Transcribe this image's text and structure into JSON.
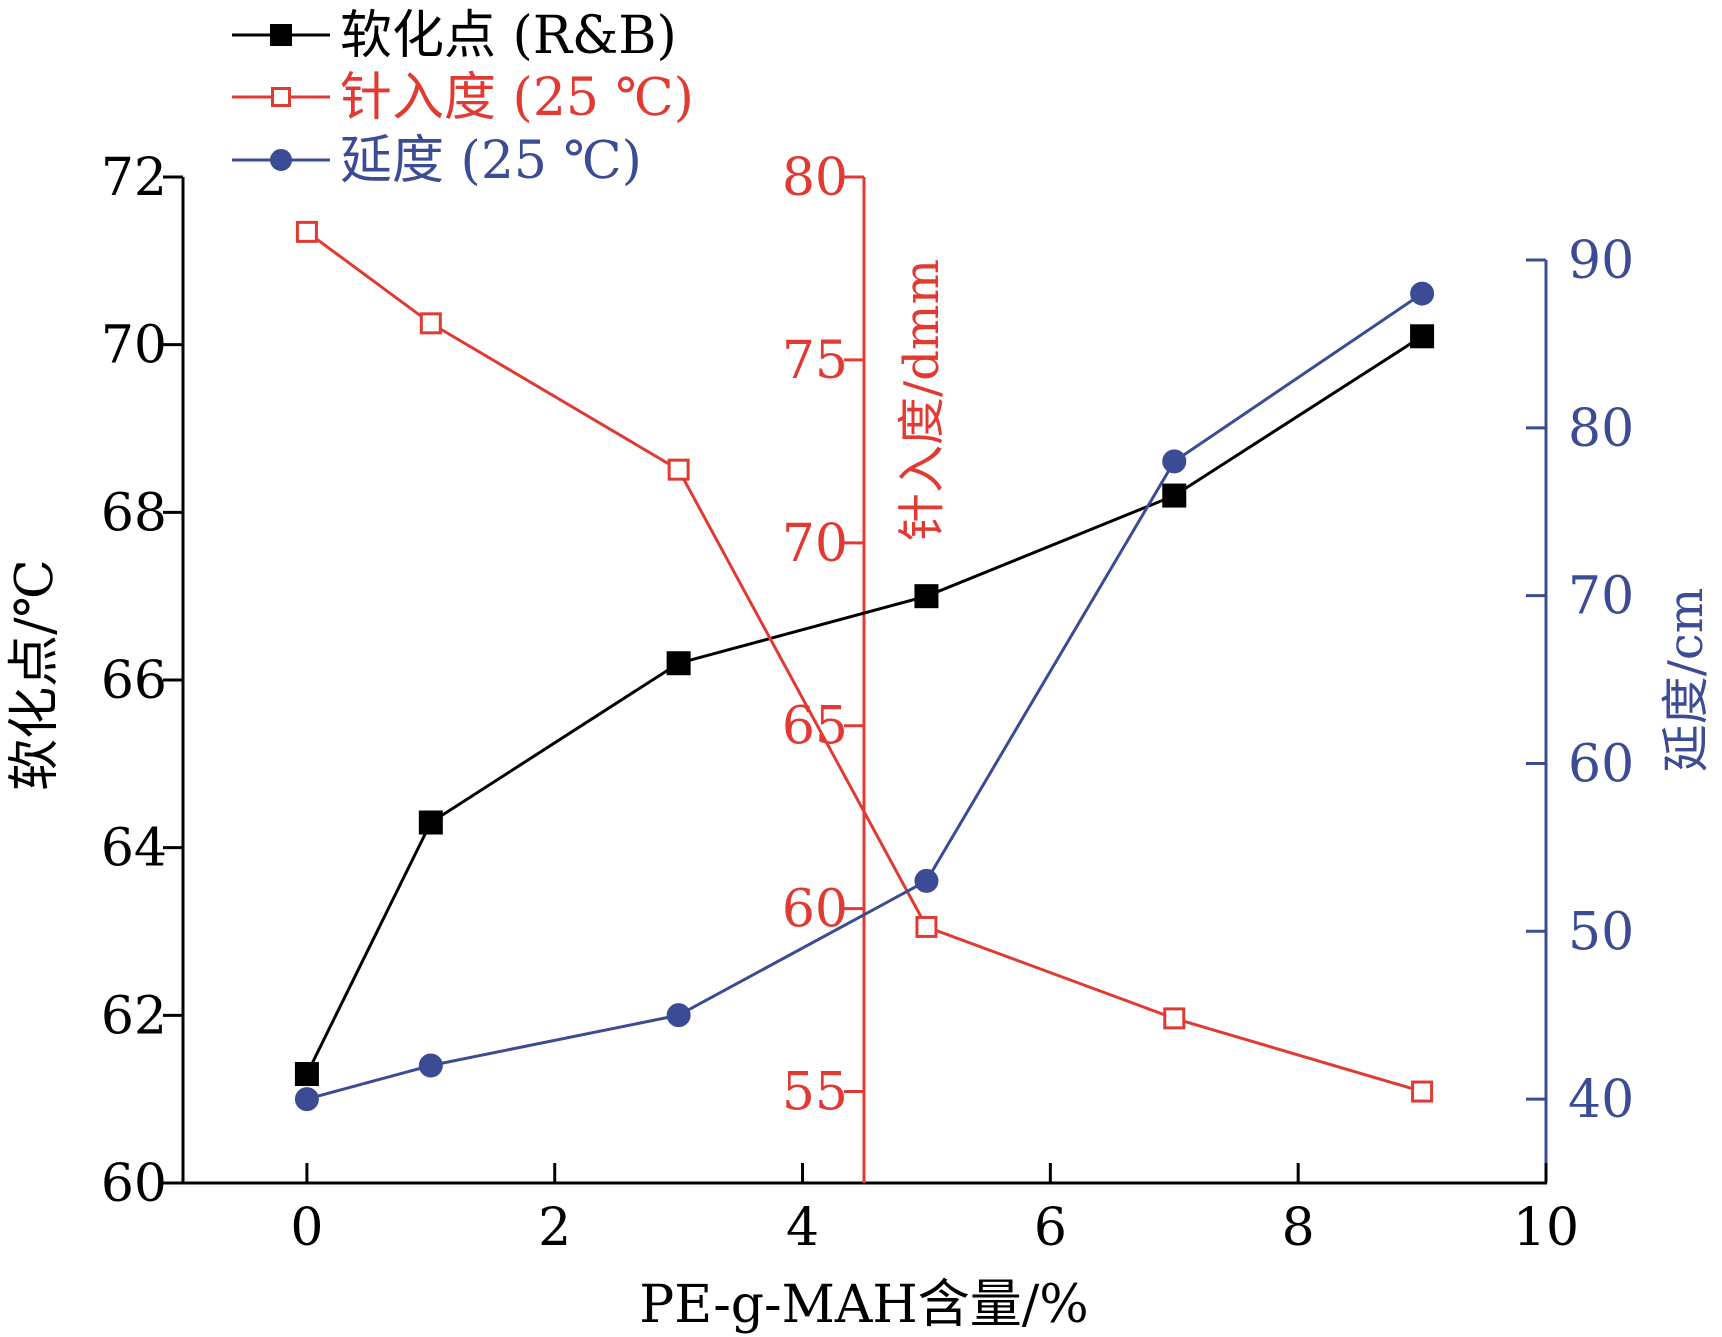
{
  "chart_data": {
    "type": "line",
    "x": [
      0,
      1,
      3,
      5,
      7,
      9
    ],
    "xlabel": "PE-g-MAH含量/%",
    "xlim": [
      -1,
      10
    ],
    "xticks": [
      0,
      2,
      4,
      6,
      8,
      10
    ],
    "xtick_labels": [
      "0",
      "2",
      "4",
      "6",
      "8",
      "10"
    ],
    "series": [
      {
        "name": "软化点 (R&B)",
        "axis": "left",
        "color": "#000000",
        "marker": "square-filled",
        "values": [
          61.3,
          64.3,
          66.2,
          67.0,
          68.2,
          70.1
        ]
      },
      {
        "name": "针入度 (25 ℃)",
        "axis": "mid",
        "color": "#e03a33",
        "marker": "square-open",
        "values": [
          78.5,
          76.0,
          72.0,
          59.5,
          57.0,
          55.0
        ]
      },
      {
        "name": "延度 (25 ℃)",
        "axis": "right",
        "color": "#3b4b94",
        "marker": "circle-filled",
        "values": [
          40,
          42,
          45,
          53,
          78,
          88
        ]
      }
    ],
    "axes": {
      "left": {
        "label": "软化点/℃",
        "range": [
          60,
          72
        ],
        "ticks": [
          60,
          62,
          64,
          66,
          68,
          70,
          72
        ],
        "tick_labels": [
          "60",
          "62",
          "64",
          "66",
          "68",
          "70",
          "72"
        ],
        "color": "#000000"
      },
      "mid": {
        "label": "针入度/dmm",
        "range": [
          52.5,
          80
        ],
        "ticks": [
          55,
          60,
          65,
          70,
          75,
          80
        ],
        "tick_labels": [
          "55",
          "60",
          "65",
          "70",
          "75",
          "80"
        ],
        "position_x": 4.5,
        "color": "#e03a33"
      },
      "right": {
        "label": "延度/cm",
        "range": [
          35,
          90
        ],
        "ticks": [
          40,
          50,
          60,
          70,
          80,
          90
        ],
        "tick_labels": [
          "40",
          "50",
          "60",
          "70",
          "80",
          "90"
        ],
        "color": "#3b4b94"
      }
    },
    "legend_position": "top-left"
  }
}
